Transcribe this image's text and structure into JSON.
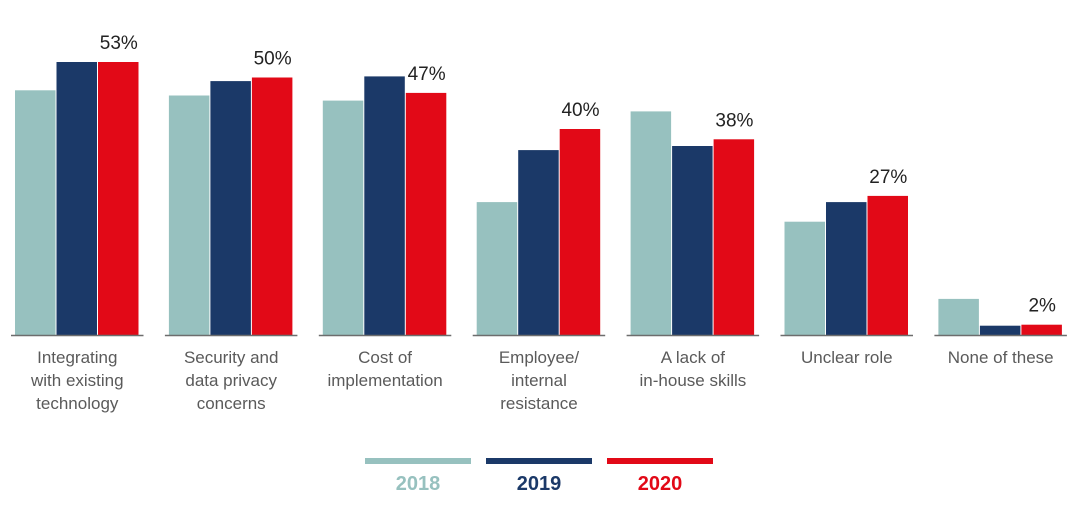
{
  "chart_data": {
    "type": "bar",
    "title": "",
    "xlabel": "",
    "ylabel": "",
    "ylim": [
      0,
      53
    ],
    "grid": false,
    "legend_position": "bottom",
    "categories": [
      [
        "Integrating",
        "with existing",
        "technology"
      ],
      [
        "Security and",
        "data privacy",
        "concerns"
      ],
      [
        "Cost of",
        "implementation"
      ],
      [
        "Employee/",
        "internal",
        "resistance"
      ],
      [
        "A lack of",
        "in-house skills"
      ],
      [
        "Unclear role"
      ],
      [
        "None of these"
      ]
    ],
    "series": [
      {
        "name": "2018",
        "color": "#97c1bf",
        "values": [
          47.5,
          46.5,
          45.5,
          25.8,
          43.4,
          22.0,
          7.0
        ]
      },
      {
        "name": "2019",
        "color": "#1b3968",
        "values": [
          53.0,
          49.3,
          50.2,
          35.9,
          36.7,
          25.8,
          1.8
        ]
      },
      {
        "name": "2020",
        "color": "#e20917",
        "values": [
          53,
          50,
          47,
          40,
          38,
          27,
          2
        ]
      }
    ],
    "data_labels": [
      "53%",
      "50%",
      "47%",
      "40%",
      "38%",
      "27%",
      "2%"
    ]
  }
}
